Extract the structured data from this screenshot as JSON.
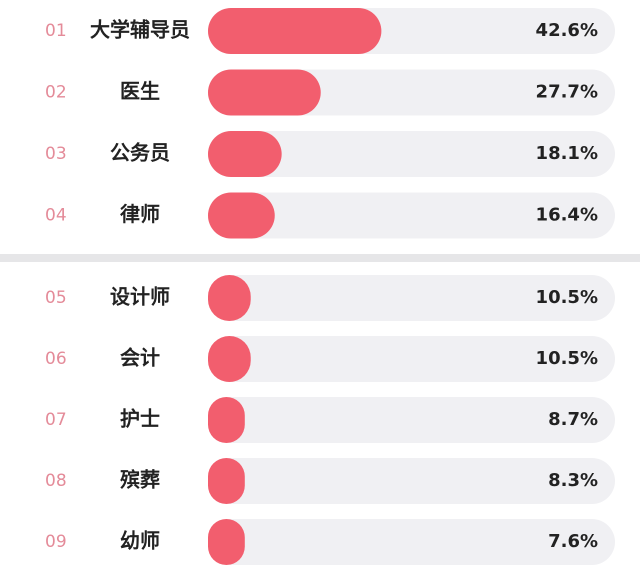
{
  "chart_data": {
    "type": "bar",
    "orientation": "horizontal",
    "ranks": [
      "01",
      "02",
      "03",
      "04",
      "05",
      "06",
      "07",
      "08",
      "09"
    ],
    "categories": [
      "大学辅导员",
      "医生",
      "公务员",
      "律师",
      "设计师",
      "会计",
      "护士",
      "殡葬",
      "幼师"
    ],
    "values": [
      42.6,
      27.7,
      18.1,
      16.4,
      10.5,
      10.5,
      8.7,
      8.3,
      7.6
    ],
    "value_labels": [
      "42.6%",
      "27.7%",
      "18.1%",
      "16.4%",
      "10.5%",
      "10.5%",
      "8.7%",
      "8.3%",
      "7.6%"
    ],
    "color": "#f25e6e",
    "xlim": [
      0,
      100
    ]
  }
}
